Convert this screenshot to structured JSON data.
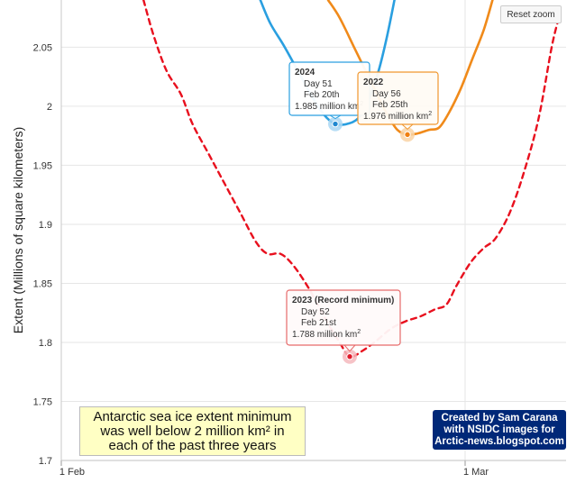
{
  "reset_zoom_label": "Reset zoom",
  "note": {
    "lines": [
      "Antarctic sea ice extent minimum",
      "was well below 2 million km² in",
      "each of the past three years"
    ]
  },
  "credit": {
    "lines": [
      "Created by Sam Carana",
      "with NSIDC images for",
      "Arctic-news.blogspot.com"
    ]
  },
  "tooltips": [
    {
      "series": "2024",
      "title": "2024",
      "day": "Day 51",
      "date": "Feb 20th",
      "value": "1.985 million km",
      "color": "#2a9fe0",
      "fill": "#ffffff"
    },
    {
      "series": "2022",
      "title": "2022",
      "day": "Day 56",
      "date": "Feb 25th",
      "value": "1.976 million km",
      "color": "#f0962e",
      "fill": "#fffbf4"
    },
    {
      "series": "2023",
      "title": "2023 (Record minimum)",
      "day": "Day 52",
      "date": "Feb 21st",
      "value": "1.788 million km",
      "color": "#e66a6a",
      "fill": "#fffafa"
    }
  ],
  "chart_data": {
    "type": "line",
    "ylabel": "Extent (Millions of square kilometers)",
    "ylim": [
      1.7,
      2.09
    ],
    "xlim": [
      32,
      67
    ],
    "yticks": [
      1.7,
      1.75,
      1.8,
      1.85,
      1.9,
      1.95,
      2,
      2.05
    ],
    "ytick_labels": [
      "1.7",
      "1.75",
      "1.8",
      "1.85",
      "1.9",
      "1.95",
      "2",
      "2.05"
    ],
    "xticks": [
      {
        "day": 32,
        "label": "1 Feb"
      },
      {
        "day": 60,
        "label": "1 Mar"
      }
    ],
    "grid": true,
    "series": [
      {
        "name": "2023",
        "color": "#e8101e",
        "dash": true,
        "points": [
          [
            37.7,
            2.09
          ],
          [
            38.4,
            2.06
          ],
          [
            39.3,
            2.03
          ],
          [
            40.3,
            2.01
          ],
          [
            41.1,
            1.985
          ],
          [
            42.2,
            1.96
          ],
          [
            43.3,
            1.935
          ],
          [
            44.4,
            1.91
          ],
          [
            45.5,
            1.885
          ],
          [
            46.3,
            1.875
          ],
          [
            47.2,
            1.875
          ],
          [
            48.1,
            1.865
          ],
          [
            49.2,
            1.845
          ],
          [
            50.3,
            1.82
          ],
          [
            51.3,
            1.8
          ],
          [
            52,
            1.788
          ],
          [
            52.9,
            1.793
          ],
          [
            53.9,
            1.802
          ],
          [
            54.9,
            1.812
          ],
          [
            55.9,
            1.818
          ],
          [
            56.9,
            1.822
          ],
          [
            57.9,
            1.828
          ],
          [
            58.7,
            1.832
          ],
          [
            59.4,
            1.848
          ],
          [
            60.4,
            1.868
          ],
          [
            61.3,
            1.88
          ],
          [
            62.1,
            1.888
          ],
          [
            63.1,
            1.91
          ],
          [
            64.1,
            1.945
          ],
          [
            65.1,
            1.99
          ],
          [
            66,
            2.05
          ],
          [
            66.5,
            2.075
          ]
        ]
      },
      {
        "name": "2024",
        "color": "#2a9fe0",
        "dash": false,
        "points": [
          [
            45.8,
            2.09
          ],
          [
            46.5,
            2.07
          ],
          [
            47.4,
            2.052
          ],
          [
            48.4,
            2.03
          ],
          [
            49.3,
            2.01
          ],
          [
            50.2,
            1.993
          ],
          [
            51,
            1.985
          ],
          [
            51.8,
            1.985
          ],
          [
            52.6,
            1.99
          ],
          [
            53.3,
            2.005
          ],
          [
            54,
            2.03
          ],
          [
            54.6,
            2.06
          ],
          [
            55.1,
            2.09
          ]
        ]
      },
      {
        "name": "2022",
        "color": "#f08a1a",
        "dash": false,
        "points": [
          [
            50.5,
            2.09
          ],
          [
            51.3,
            2.075
          ],
          [
            52.3,
            2.05
          ],
          [
            53.1,
            2.03
          ],
          [
            53.9,
            2.01
          ],
          [
            54.6,
            1.993
          ],
          [
            55.3,
            1.98
          ],
          [
            56,
            1.976
          ],
          [
            56.7,
            1.977
          ],
          [
            57.5,
            1.98
          ],
          [
            58.2,
            1.982
          ],
          [
            58.9,
            1.995
          ],
          [
            59.7,
            2.015
          ],
          [
            60.5,
            2.04
          ],
          [
            61.3,
            2.065
          ],
          [
            61.9,
            2.09
          ]
        ]
      }
    ],
    "markers": [
      {
        "series": "2024",
        "day": 51,
        "value": 1.985,
        "color": "#1e88d0",
        "halo": "#a9d7f3"
      },
      {
        "series": "2022",
        "day": 56,
        "value": 1.976,
        "color": "#f07f10",
        "halo": "#f9d3a6"
      },
      {
        "series": "2023",
        "day": 52,
        "value": 1.788,
        "color": "#e01a2a",
        "halo": "#f5b8bd"
      }
    ]
  }
}
